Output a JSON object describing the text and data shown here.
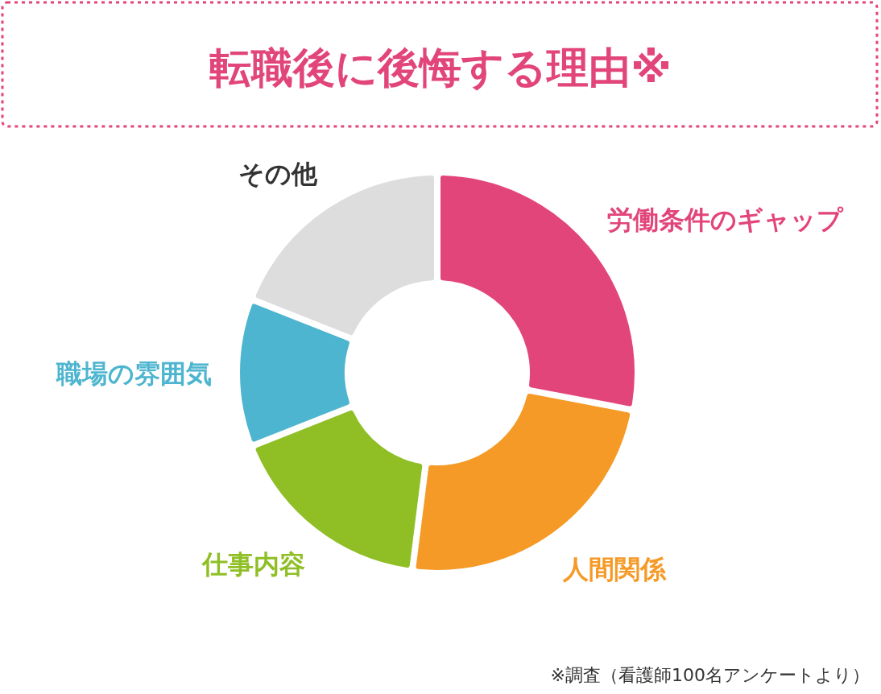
{
  "chart_data": {
    "type": "donut",
    "title": "転職後に後悔する理由※",
    "categories": [
      "労働条件のギャップ",
      "人間関係",
      "仕事内容",
      "職場の雰囲気",
      "その他"
    ],
    "values": [
      28,
      24,
      17,
      12,
      19
    ],
    "colors": [
      "#e2457a",
      "#f59a27",
      "#8fbf25",
      "#4db5cf",
      "#dddddd"
    ],
    "annotations": [
      "※調査（看護師100名アンケートより）"
    ]
  }
}
